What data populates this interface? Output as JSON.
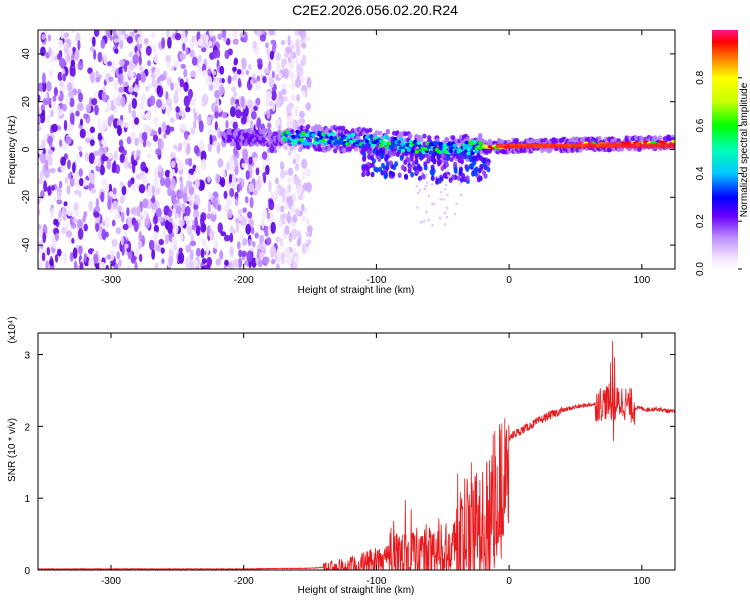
{
  "title": "C2E2.2026.056.02.20.R24",
  "chart_data": [
    {
      "type": "heatmap",
      "xlabel": "Height of straight line (km)",
      "ylabel": "Frequency (Hz)",
      "xlim": [
        -355,
        125
      ],
      "ylim": [
        -50,
        50
      ],
      "xticks": [
        -300,
        -200,
        -100,
        0,
        100
      ],
      "yticks": [
        -40,
        -20,
        0,
        20,
        40
      ],
      "grid": false,
      "colorbar": {
        "label": "Normalized spectral amplitude",
        "range": [
          0,
          1
        ],
        "ticks": [
          "0.0",
          "0.2",
          "0.4",
          "0.6",
          "0.8"
        ]
      },
      "features": {
        "noise_region_x": [
          -355,
          -160
        ],
        "ridge": [
          {
            "x": -210,
            "f": 5
          },
          {
            "x": -160,
            "f": 5
          },
          {
            "x": -120,
            "f": 4
          },
          {
            "x": -80,
            "f": 2
          },
          {
            "x": -50,
            "f": 0
          },
          {
            "x": -20,
            "f": 1
          },
          {
            "x": 0,
            "f": 1.5
          },
          {
            "x": 50,
            "f": 2
          },
          {
            "x": 100,
            "f": 2.5
          },
          {
            "x": 125,
            "f": 3
          }
        ]
      }
    },
    {
      "type": "line",
      "xlabel": "Height of straight line (km)",
      "ylabel": "SNR (10 * v/v)",
      "yscale_label": "(x10⁴)",
      "xlim": [
        -355,
        125
      ],
      "ylim": [
        0,
        3.3
      ],
      "xticks": [
        -300,
        -200,
        -100,
        0,
        100
      ],
      "yticks": [
        0,
        1,
        2,
        3
      ],
      "color": "#e8191c",
      "series": [
        {
          "x": [
            -355,
            -300,
            -250,
            -200,
            -150,
            -125,
            -110,
            -100,
            -90,
            -80,
            -70,
            -60,
            -50,
            -40,
            -35,
            -30,
            -25,
            -20,
            -15,
            -10,
            -5,
            0,
            10,
            20,
            30,
            40,
            50,
            60,
            70,
            75,
            80,
            85,
            90,
            95,
            100,
            105,
            110,
            115,
            125
          ],
          "y": [
            0.01,
            0.01,
            0.01,
            0.01,
            0.02,
            0.05,
            0.12,
            0.2,
            0.28,
            0.3,
            0.3,
            0.35,
            0.45,
            0.5,
            0.6,
            0.7,
            0.8,
            0.95,
            1.2,
            1.5,
            1.75,
            1.85,
            1.95,
            2.05,
            2.15,
            2.22,
            2.27,
            2.3,
            2.32,
            2.35,
            2.3,
            2.35,
            2.3,
            2.26,
            2.25,
            2.23,
            2.25,
            2.23,
            2.2
          ]
        }
      ]
    }
  ]
}
